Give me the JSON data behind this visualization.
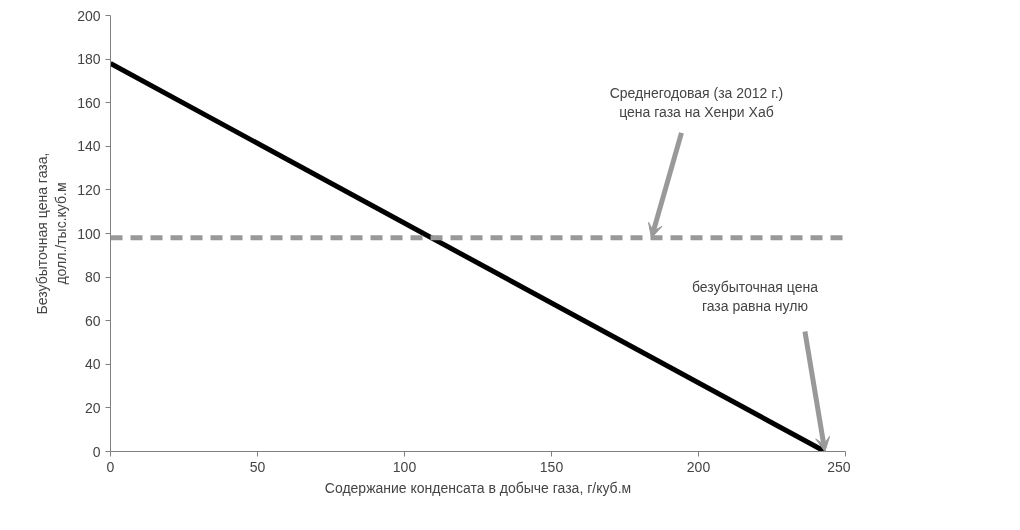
{
  "chart_data": {
    "type": "line",
    "xlabel": "Содержание конденсата в добыче газа, г/куб.м",
    "ylabel": "Безубыточная цена газа,\nдолл./тыс.куб.м",
    "series": [
      {
        "x": [
          0,
          243
        ],
        "values": [
          178,
          0
        ],
        "color": "#000000"
      }
    ],
    "ref_lines": [
      {
        "axis": "y",
        "value": 98,
        "color": "#999999",
        "line_style": "dashed"
      }
    ],
    "annotations": [
      {
        "text": "Среднегодовая (за 2012 г.)\nцена газа на Хенри Хаб",
        "x": 184,
        "y": 98
      },
      {
        "text": "безубыточная цена\nгаза равна нулю",
        "x": 243,
        "y": 0
      }
    ],
    "xlim": [
      0,
      250
    ],
    "xticks": [
      0,
      50,
      100,
      150,
      200,
      250
    ],
    "ylim": [
      0,
      200
    ],
    "yticks": [
      0,
      20,
      40,
      60,
      80,
      100,
      120,
      140,
      160,
      180,
      200
    ],
    "grid": false,
    "marker": "none",
    "line_style": "solid"
  }
}
